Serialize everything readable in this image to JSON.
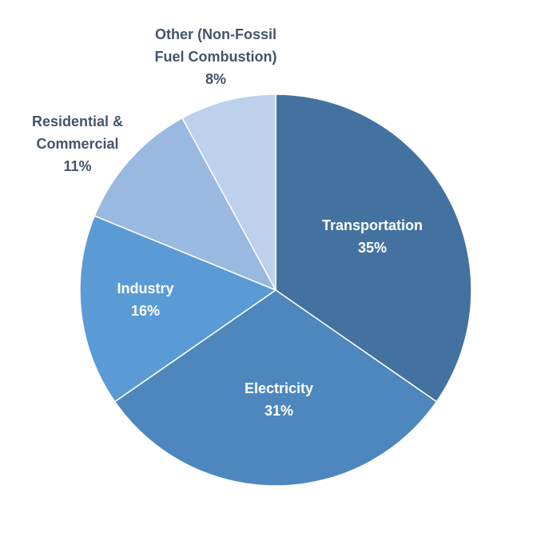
{
  "chart_data": {
    "type": "pie",
    "title": "",
    "start_angle_deg": 0,
    "direction": "clockwise",
    "slices": [
      {
        "label": "Transportation",
        "value": 35,
        "pct_label": "35%",
        "color": "#4472A0",
        "label_color": "#ffffff",
        "label_inside": true
      },
      {
        "label": "Electricity",
        "value": 31,
        "pct_label": "31%",
        "color": "#4D87BE",
        "label_color": "#ffffff",
        "label_inside": true
      },
      {
        "label": "Industry",
        "value": 16,
        "pct_label": "16%",
        "color": "#5B9BD5",
        "label_color": "#ffffff",
        "label_inside": true
      },
      {
        "label": "Residential & Commercial",
        "label_lines": [
          "Residential &",
          "Commercial"
        ],
        "value": 11,
        "pct_label": "11%",
        "color": "#9AB9E0",
        "label_color": "#44546A",
        "label_inside": false
      },
      {
        "label": "Other (Non-Fossil Fuel Combustion)",
        "label_lines": [
          "Other (Non-Fossil",
          "Fuel Combustion)"
        ],
        "value": 8,
        "pct_label": "8%",
        "color": "#BDD0EC",
        "label_color": "#44546A",
        "label_inside": false
      }
    ],
    "legend": "none",
    "slice_border_color": "#ffffff"
  }
}
